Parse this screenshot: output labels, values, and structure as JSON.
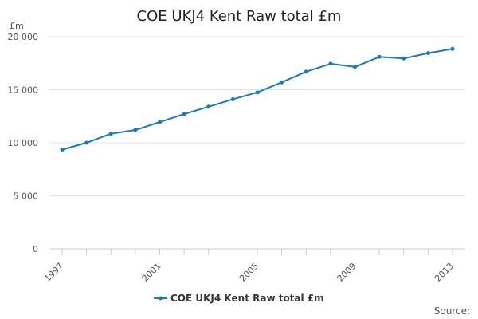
{
  "chart_data": {
    "type": "line",
    "title": "COE UKJ4 Kent Raw total £m",
    "unit_label": "£m",
    "x": [
      1997,
      1998,
      1999,
      2000,
      2001,
      2002,
      2003,
      2004,
      2005,
      2006,
      2007,
      2008,
      2009,
      2010,
      2011,
      2012,
      2013
    ],
    "x_tick_labels": [
      "1997",
      "2001",
      "2005",
      "2009",
      "2013"
    ],
    "y_tick_labels": [
      "0",
      "5 000",
      "10 000",
      "15 000",
      "20 000"
    ],
    "ylim": [
      0,
      20000
    ],
    "series": [
      {
        "name": "COE UKJ4 Kent Raw total £m",
        "color": "#1a7ab8",
        "values": [
          9350,
          10000,
          10850,
          11200,
          11950,
          12700,
          13400,
          14100,
          14750,
          15700,
          16700,
          17450,
          17150,
          18100,
          17950,
          18450,
          18850
        ]
      }
    ],
    "grid": "horizontal",
    "legend_position": "bottom",
    "source_label": "Source:"
  }
}
